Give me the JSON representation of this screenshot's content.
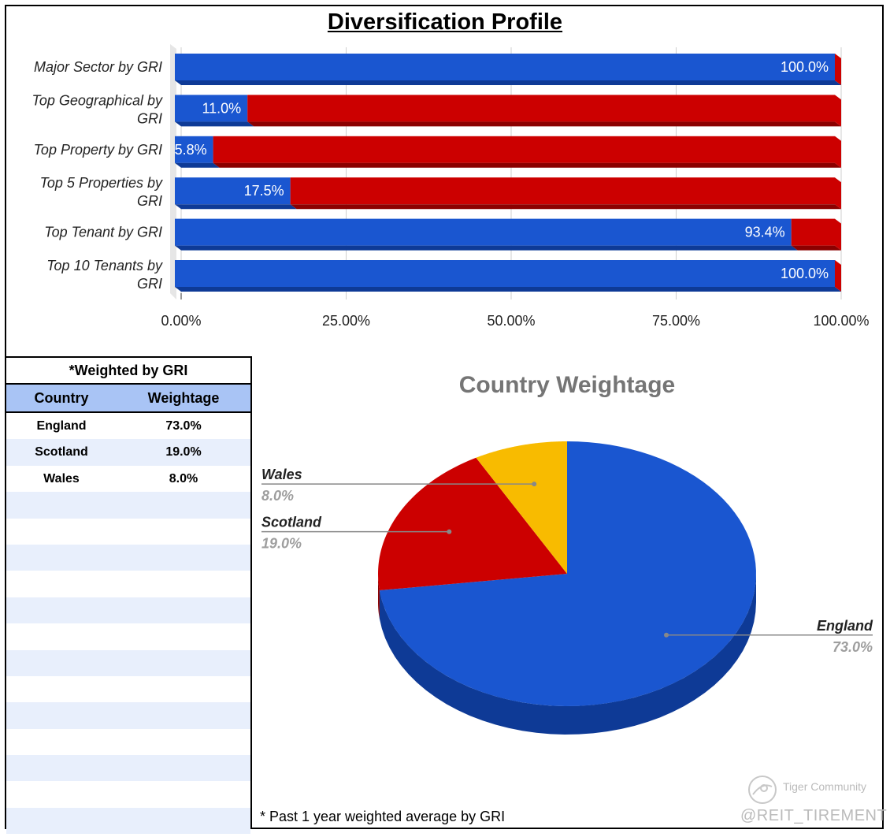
{
  "title": "Diversification Profile",
  "colors": {
    "blue": "#1a56d0",
    "blue_dark": "#0e3a96",
    "red": "#cc0000",
    "red_dark": "#8b0000",
    "yellow": "#f8bb00",
    "grey_text": "#757575"
  },
  "chart_data": [
    {
      "type": "bar",
      "orientation": "horizontal",
      "stacked": true,
      "categories": [
        "Major Sector by GRI",
        "Top Geographical by GRI",
        "Top Property by GRI",
        "Top 5 Properties by GRI",
        "Top Tenant by GRI",
        "Top 10 Tenants by GRI"
      ],
      "category_lines": [
        [
          "Major Sector by GRI"
        ],
        [
          "Top Geographical by",
          "GRI"
        ],
        [
          "Top Property by GRI"
        ],
        [
          "Top 5 Properties by",
          "GRI"
        ],
        [
          "Top Tenant by GRI"
        ],
        [
          "Top 10 Tenants by",
          "GRI"
        ]
      ],
      "series": [
        {
          "values": [
            100.0,
            11.0,
            5.8,
            17.5,
            93.4,
            100.0
          ],
          "labels": [
            "100.0%",
            "11.0%",
            "5.8%",
            "17.5%",
            "93.4%",
            "100.0%"
          ],
          "color": "#1a56d0"
        },
        {
          "values": [
            0.0,
            89.0,
            94.2,
            82.5,
            6.6,
            0.0
          ],
          "color": "#cc0000"
        }
      ],
      "xlim": [
        0,
        100
      ],
      "x_ticks": [
        "0.00%",
        "25.00%",
        "50.00%",
        "75.00%",
        "100.00%"
      ],
      "grid": true
    },
    {
      "type": "pie",
      "title": "Country Weightage",
      "slices": [
        {
          "label": "England",
          "value": 73.0,
          "text": "73.0%",
          "color": "#1a56d0"
        },
        {
          "label": "Scotland",
          "value": 19.0,
          "text": "19.0%",
          "color": "#cc0000"
        },
        {
          "label": "Wales",
          "value": 8.0,
          "text": "8.0%",
          "color": "#f8bb00"
        }
      ]
    }
  ],
  "table": {
    "title": "*Weighted by GRI",
    "headers": [
      "Country",
      "Weightage"
    ],
    "rows": [
      [
        "England",
        "73.0%"
      ],
      [
        "Scotland",
        "19.0%"
      ],
      [
        "Wales",
        "8.0%"
      ]
    ],
    "empty_rows": 13
  },
  "footnote": "* Past 1 year weighted average by GRI",
  "watermark": {
    "brand": "Tiger Community",
    "handle": "@REIT_TIREMENT"
  }
}
